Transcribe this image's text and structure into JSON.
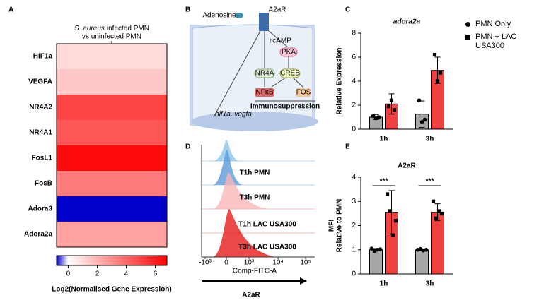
{
  "panels": [
    "A",
    "B",
    "C",
    "D",
    "E"
  ],
  "chart_data": [
    {
      "type": "heatmap",
      "title": [
        "S. aureus",
        "infected PMN",
        "vs uninfected PMN"
      ],
      "categories": [
        "HIF1a",
        "VEGFA",
        "NR4A2",
        "NR4A1",
        "FosL1",
        "FosB",
        "Adora3",
        "Adora2a"
      ],
      "values": [
        1,
        1.5,
        5,
        4.5,
        6.5,
        3.5,
        -0.8,
        2.5
      ],
      "colormap": {
        "low": "#0000c8",
        "mid": "#ffffff",
        "high": "#ff0000"
      },
      "clim": [
        -0.8,
        6.8
      ],
      "cticks": [
        0,
        2,
        4,
        6
      ],
      "clabel": "Log2(Normalised Gene Expression)"
    },
    {
      "type": "bar",
      "title": "adora2a",
      "ylabel": [
        "Relative Expression"
      ],
      "categories": [
        "1h",
        "3h"
      ],
      "ylim": [
        0,
        8
      ],
      "yticks": [
        0,
        2,
        4,
        6,
        8
      ],
      "series": [
        {
          "name": "PMN Only",
          "color": "#a6a6a6",
          "values": [
            1.0,
            1.25
          ],
          "errors": [
            0.2,
            1.1
          ],
          "points": [
            [
              1.1,
              0.9,
              1.0
            ],
            [
              2.4,
              0.6,
              0.8
            ]
          ]
        },
        {
          "name": "PMN + LAC USA300",
          "color": "#f04040",
          "values": [
            2.1,
            4.9
          ],
          "errors": [
            0.85,
            1.1
          ],
          "points": [
            [
              1.9,
              2.4,
              1.6
            ],
            [
              6.2,
              4.0,
              4.7
            ]
          ]
        }
      ]
    },
    {
      "type": "bar",
      "title": "A2aR",
      "ylabel": [
        "MFI",
        "Relative to PMN"
      ],
      "categories": [
        "1h",
        "3h"
      ],
      "ylim": [
        0,
        4
      ],
      "yticks": [
        0,
        1,
        2,
        3,
        4
      ],
      "annotations": [
        "***",
        "***"
      ],
      "series": [
        {
          "name": "PMN Only",
          "color": "#a6a6a6",
          "values": [
            1.0,
            1.0
          ],
          "errors": [
            0.05,
            0.04
          ],
          "points": [
            [
              1.05,
              0.95,
              1.0,
              1.02
            ],
            [
              1.0,
              1.03,
              0.97,
              1.0
            ]
          ]
        },
        {
          "name": "PMN + LAC USA300",
          "color": "#f04040",
          "values": [
            2.55,
            2.55
          ],
          "errors": [
            0.9,
            0.35
          ],
          "points": [
            [
              3.3,
              2.6,
              1.6,
              2.2
            ],
            [
              3.0,
              2.3,
              2.6,
              2.5
            ]
          ]
        }
      ]
    }
  ],
  "diagram": {
    "adenosine": "Adenosine",
    "receptor": "A2aR",
    "camp": "↑cAMP",
    "pka": "PKA",
    "nr4a": "NR4A",
    "creb": "CREB",
    "nfkb": "NFκB",
    "fos": "FOS",
    "outcome": "Immunosuppression",
    "genes": "hif1a, vegfa"
  },
  "flow": {
    "samples": [
      "T1h PMN",
      "T3h PMN",
      "T1h LAC USA300",
      "T3h LAC USA300"
    ],
    "xticks": [
      "-10³",
      "0",
      "10³",
      "10⁴",
      "10⁵"
    ],
    "xlabel": "Comp-FITC-A",
    "marker": "A2aR"
  }
}
